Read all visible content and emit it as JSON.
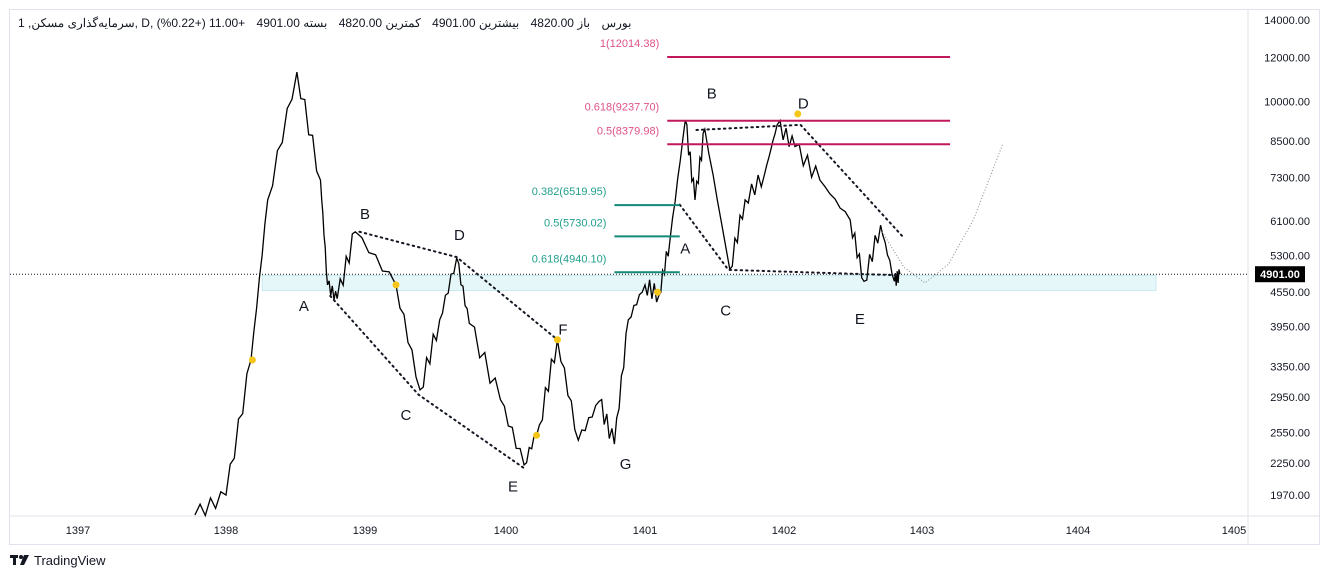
{
  "header": {
    "symbol": "1 ,سرمایه‌گذاری مسکن, D, بورس",
    "open": "باز 4820.00",
    "high": "بیشترین 4901.00",
    "low": "کمترین 4820.00",
    "close": "بسته 4901.00",
    "change": "+11.00 (+0.22%)"
  },
  "brand": "TradingView",
  "colors": {
    "fib_upper": "#c2185b",
    "fib_upper_text": "#e0518a",
    "fib_lower": "#138a7a",
    "fib_lower_text": "#22a08c",
    "marker": "#f5c518",
    "zone": "#e6f7f9"
  },
  "chart_data": {
    "type": "line",
    "title": "سرمایه‌گذاری مسکن, D, بورس",
    "y_scale": "log",
    "ylim": [
      1800,
      14500
    ],
    "y_ticks": [
      "14000.00",
      "12000.00",
      "10000.00",
      "8500.00",
      "7300.00",
      "6100.00",
      "5300.00",
      "4550.00",
      "3950.00",
      "3350.00",
      "2950.00",
      "2550.00",
      "2250.00",
      "1970.00"
    ],
    "x_ticks": [
      "1397",
      "1398",
      "1399",
      "1400",
      "1401",
      "1402",
      "1403",
      "1404",
      "1405"
    ],
    "last_price": 4901,
    "last_price_label": "4901.00",
    "series": [
      {
        "name": "price",
        "points": [
          [
            1397.79,
            1814
          ],
          [
            1398.0,
            1970
          ],
          [
            1398.18,
            3440
          ],
          [
            1398.3,
            6660
          ],
          [
            1398.51,
            11290
          ],
          [
            1398.68,
            7230
          ],
          [
            1398.73,
            4690
          ],
          [
            1398.8,
            4430
          ],
          [
            1398.93,
            5840
          ],
          [
            1399.22,
            4690
          ],
          [
            1399.39,
            3040
          ],
          [
            1399.53,
            4060
          ],
          [
            1399.65,
            5240
          ],
          [
            1399.74,
            4000
          ],
          [
            1399.96,
            2920
          ],
          [
            1400.13,
            2230
          ],
          [
            1400.24,
            2630
          ],
          [
            1400.37,
            3740
          ],
          [
            1400.52,
            2470
          ],
          [
            1400.67,
            2900
          ],
          [
            1400.78,
            2430
          ],
          [
            1400.88,
            4060
          ],
          [
            1401.0,
            4690
          ],
          [
            1401.1,
            4490
          ],
          [
            1401.18,
            5650
          ],
          [
            1401.29,
            9260
          ],
          [
            1401.36,
            6660
          ],
          [
            1401.43,
            8920
          ],
          [
            1401.61,
            5000
          ],
          [
            1401.72,
            6660
          ],
          [
            1401.86,
            7400
          ],
          [
            1401.95,
            9080
          ],
          [
            1402.08,
            8300
          ],
          [
            1402.26,
            7230
          ],
          [
            1402.48,
            6130
          ],
          [
            1402.58,
            4760
          ],
          [
            1402.7,
            6000
          ],
          [
            1402.8,
            4760
          ],
          [
            1402.84,
            4901
          ]
        ]
      }
    ],
    "fib_levels": [
      {
        "label": "1(12014.38)",
        "price": 12014.38,
        "from": 1401.16,
        "to": 1403.18,
        "group": "upper"
      },
      {
        "label": "0.618(9237.70)",
        "price": 9237.7,
        "from": 1401.16,
        "to": 1403.18,
        "group": "upper"
      },
      {
        "label": "0.5(8379.98)",
        "price": 8379.98,
        "from": 1401.16,
        "to": 1403.18,
        "group": "upper"
      },
      {
        "label": "0.382(6519.95)",
        "price": 6519.95,
        "from": 1400.78,
        "to": 1401.25,
        "group": "lower"
      },
      {
        "label": "0.5(5730.02)",
        "price": 5730.02,
        "from": 1400.78,
        "to": 1401.25,
        "group": "lower"
      },
      {
        "label": "0.618(4940.10)",
        "price": 4940.1,
        "from": 1400.78,
        "to": 1401.25,
        "group": "lower"
      }
    ],
    "zone": {
      "from": 1398.26,
      "to": 1404.5,
      "low": 4580,
      "high": 4880
    },
    "trendlines": [
      [
        [
          1398.96,
          5840
        ],
        [
          1399.65,
          5260
        ],
        [
          1400.37,
          3740
        ]
      ],
      [
        [
          1398.75,
          4480
        ],
        [
          1399.38,
          2980
        ],
        [
          1400.13,
          2200
        ]
      ],
      [
        [
          1401.37,
          8890
        ],
        [
          1402.12,
          9080
        ],
        [
          1402.87,
          5690
        ]
      ],
      [
        [
          1401.25,
          6530
        ],
        [
          1401.6,
          4990
        ],
        [
          1402.84,
          4880
        ]
      ]
    ],
    "projection": [
      [
        1402.7,
        5900
      ],
      [
        1402.87,
        5040
      ],
      [
        1403.02,
        4730
      ],
      [
        1403.17,
        5110
      ],
      [
        1403.33,
        6140
      ],
      [
        1403.52,
        8420
      ]
    ],
    "wave_labels": [
      {
        "text": "A",
        "t": 1398.56,
        "p": 4320
      },
      {
        "text": "B",
        "t": 1399.0,
        "p": 6310
      },
      {
        "text": "C",
        "t": 1399.29,
        "p": 2750
      },
      {
        "text": "D",
        "t": 1399.67,
        "p": 5790
      },
      {
        "text": "E",
        "t": 1400.05,
        "p": 2050
      },
      {
        "text": "F",
        "t": 1400.41,
        "p": 3920
      },
      {
        "text": "G",
        "t": 1400.86,
        "p": 2250
      },
      {
        "text": "A",
        "t": 1401.29,
        "p": 5470
      },
      {
        "text": "B",
        "t": 1401.48,
        "p": 10370
      },
      {
        "text": "C",
        "t": 1401.58,
        "p": 4240
      },
      {
        "text": "D",
        "t": 1402.14,
        "p": 9960
      },
      {
        "text": "E",
        "t": 1402.55,
        "p": 4090
      }
    ],
    "markers": [
      [
        1398.19,
        3440
      ],
      [
        1399.22,
        4690
      ],
      [
        1400.22,
        2520
      ],
      [
        1400.37,
        3740
      ],
      [
        1401.09,
        4550
      ],
      [
        1402.1,
        9500
      ]
    ]
  }
}
